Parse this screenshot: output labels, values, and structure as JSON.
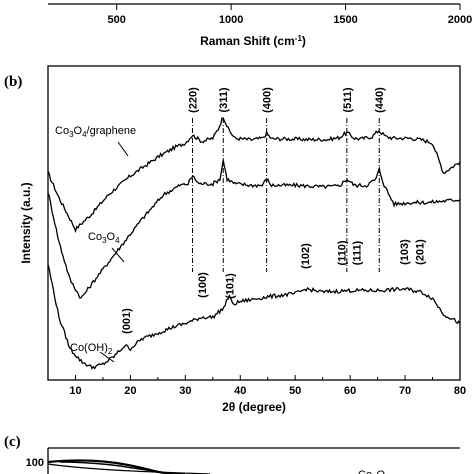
{
  "chart_data": [
    {
      "panel": "a",
      "type": "line",
      "x_ticks": [
        500,
        1000,
        1500,
        2000
      ],
      "xlim": [
        200,
        2000
      ],
      "xlabel": "Raman Shift (cm",
      "xlabel_sup": "-1",
      "xlabel_end": ")"
    },
    {
      "panel": "b",
      "panel_label": "(b)",
      "type": "line",
      "xlabel": "2θ (degree)",
      "ylabel": "Intensity (a.u.)",
      "xlim": [
        5,
        80
      ],
      "x_ticks": [
        10,
        20,
        30,
        40,
        50,
        60,
        70,
        80
      ],
      "series": [
        {
          "name_main": "Co",
          "name_sub1": "3",
          "name_mid": "O",
          "name_sub2": "4",
          "name_end": "/graphene",
          "x": [
            5,
            7,
            10,
            13,
            16,
            20,
            25,
            28,
            30,
            31.3,
            33,
            35,
            36,
            36.9,
            37.8,
            39,
            42,
            44,
            44.8,
            45.7,
            48,
            52,
            56,
            58,
            59.4,
            60.8,
            62,
            64,
            65.2,
            66.5,
            68,
            71,
            73,
            75,
            77,
            80
          ],
          "y": [
            0.66,
            0.58,
            0.48,
            0.53,
            0.59,
            0.65,
            0.71,
            0.74,
            0.755,
            0.78,
            0.76,
            0.77,
            0.8,
            0.84,
            0.8,
            0.77,
            0.765,
            0.77,
            0.785,
            0.768,
            0.768,
            0.766,
            0.766,
            0.772,
            0.788,
            0.77,
            0.768,
            0.775,
            0.795,
            0.775,
            0.77,
            0.77,
            0.765,
            0.755,
            0.66,
            0.695
          ]
        },
        {
          "name_main": "Co",
          "name_sub1": "3",
          "name_mid": "O",
          "name_sub2": "4",
          "name_end": "",
          "x": [
            5,
            7,
            9,
            11,
            14,
            18,
            22,
            26,
            29,
            30.5,
            31.3,
            32.5,
            35,
            36.3,
            36.9,
            37.6,
            39,
            42,
            44,
            44.8,
            45.7,
            50,
            55,
            58,
            59.4,
            60.8,
            63,
            64.7,
            65.3,
            66.2,
            68,
            71,
            74,
            77,
            80
          ],
          "y": [
            0.6,
            0.44,
            0.32,
            0.26,
            0.33,
            0.42,
            0.51,
            0.59,
            0.62,
            0.625,
            0.65,
            0.625,
            0.625,
            0.64,
            0.7,
            0.64,
            0.625,
            0.62,
            0.62,
            0.64,
            0.62,
            0.62,
            0.615,
            0.618,
            0.64,
            0.62,
            0.62,
            0.64,
            0.67,
            0.62,
            0.56,
            0.565,
            0.565,
            0.57,
            0.575
          ]
        },
        {
          "name_main": "Co(OH)",
          "name_sub1": "2",
          "name_mid": "",
          "name_sub2": "",
          "name_end": "",
          "x": [
            5,
            7,
            9,
            11,
            13,
            15,
            17,
            19,
            20,
            22,
            25,
            28,
            30,
            33,
            35,
            37,
            38,
            38.6,
            40,
            45,
            50,
            52,
            55,
            60,
            65,
            70,
            73,
            75,
            77,
            80
          ],
          "y": [
            0.37,
            0.2,
            0.1,
            0.06,
            0.04,
            0.05,
            0.075,
            0.11,
            0.1,
            0.13,
            0.15,
            0.17,
            0.18,
            0.2,
            0.2,
            0.23,
            0.27,
            0.24,
            0.25,
            0.265,
            0.275,
            0.29,
            0.28,
            0.285,
            0.285,
            0.29,
            0.28,
            0.26,
            0.21,
            0.18
          ]
        }
      ],
      "peak_labels_top": [
        {
          "x": 31.3,
          "text": "(220)"
        },
        {
          "x": 36.9,
          "text": "(311)"
        },
        {
          "x": 44.8,
          "text": "(400)"
        },
        {
          "x": 59.4,
          "text": "(511)"
        },
        {
          "x": 65.3,
          "text": "(440)"
        }
      ],
      "peak_labels_bottom": [
        {
          "x": 19.2,
          "text": "(001)"
        },
        {
          "x": 33.0,
          "text": "(100)"
        },
        {
          "x": 38.0,
          "text": "(101)"
        },
        {
          "x": 51.8,
          "text": "(102)"
        },
        {
          "x": 58.4,
          "text": "(110)"
        },
        {
          "x": 61.2,
          "text": "(111)"
        },
        {
          "x": 69.8,
          "text": "(103)"
        },
        {
          "x": 72.6,
          "text": "(201)"
        }
      ]
    },
    {
      "panel": "c",
      "panel_label": "(c)",
      "type": "line",
      "y_ticks": [
        100
      ],
      "series_label_main": "Co",
      "series_label_sub": "3",
      "series_label_end": "O"
    }
  ]
}
